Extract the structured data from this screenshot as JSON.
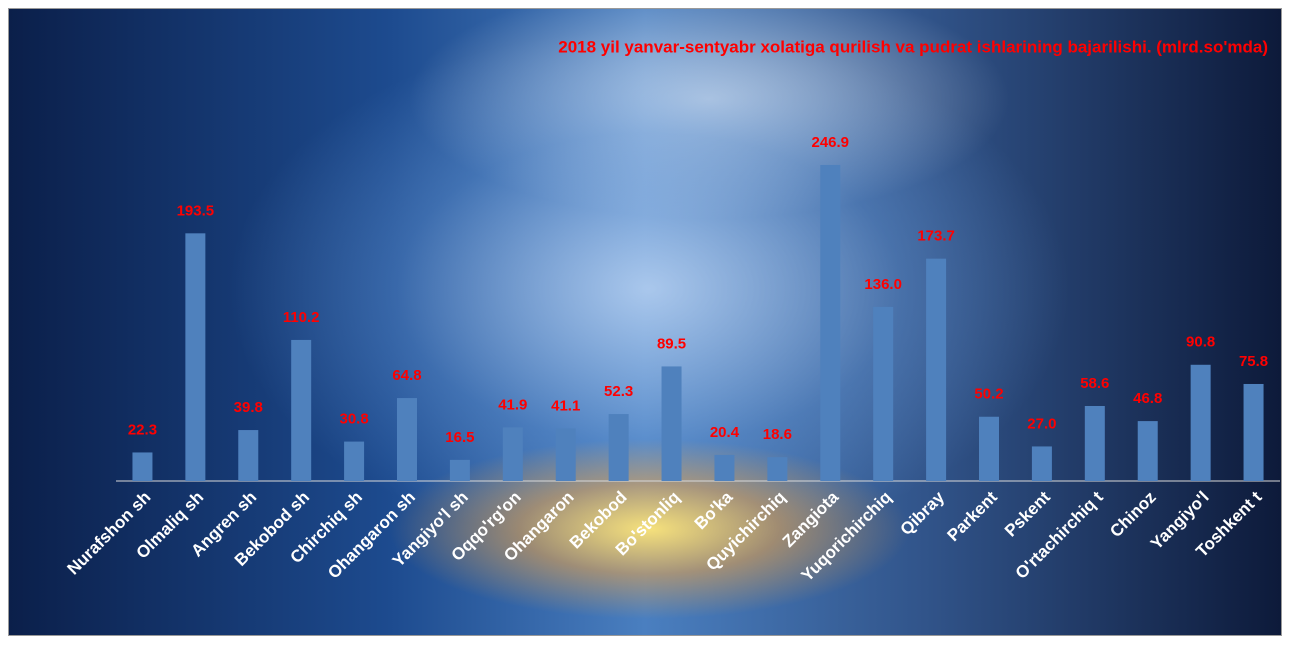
{
  "chart_data": {
    "type": "bar",
    "title": "2018 yil yanvar-sentyabr xolatiga qurilish va pudrat ishlarining bajarilishi. (mlrd.so'mda)",
    "categories": [
      "Nurafshon sh",
      "Olmaliq sh",
      "Angren sh",
      "Bekobod sh",
      "Chirchiq sh",
      "Ohangaron sh",
      "Yangiyo'l sh",
      "Oqqo'rg'on",
      "Ohangaron",
      "Bekobod",
      "Bo'stonliq",
      "Bo'ka",
      "Quyichirchiq",
      "Zangiota",
      "Yuqorichirchiq",
      "Qibray",
      "Parkent",
      "Pskent",
      "O'rtachirchiq t",
      "Chinoz",
      "Yangiyo'l",
      "Toshkent t"
    ],
    "values": [
      22.3,
      193.5,
      39.8,
      110.2,
      30.8,
      64.8,
      16.5,
      41.9,
      41.1,
      52.3,
      89.5,
      20.4,
      18.6,
      246.9,
      136.0,
      173.7,
      50.2,
      27.0,
      58.6,
      46.8,
      90.8,
      75.8
    ],
    "value_labels": [
      "22.3",
      "193.5",
      "39.8",
      "110.2",
      "30.8",
      "64.8",
      "16.5",
      "41.9",
      "41.1",
      "52.3",
      "89.5",
      "20.4",
      "18.6",
      "246.9",
      "136.0",
      "173.7",
      "50.2",
      "27.0",
      "58.6",
      "46.8",
      "90.8",
      "75.8"
    ],
    "color": "#4f81bd",
    "label_color": "#ff0000",
    "ylim": [
      0,
      300
    ]
  }
}
